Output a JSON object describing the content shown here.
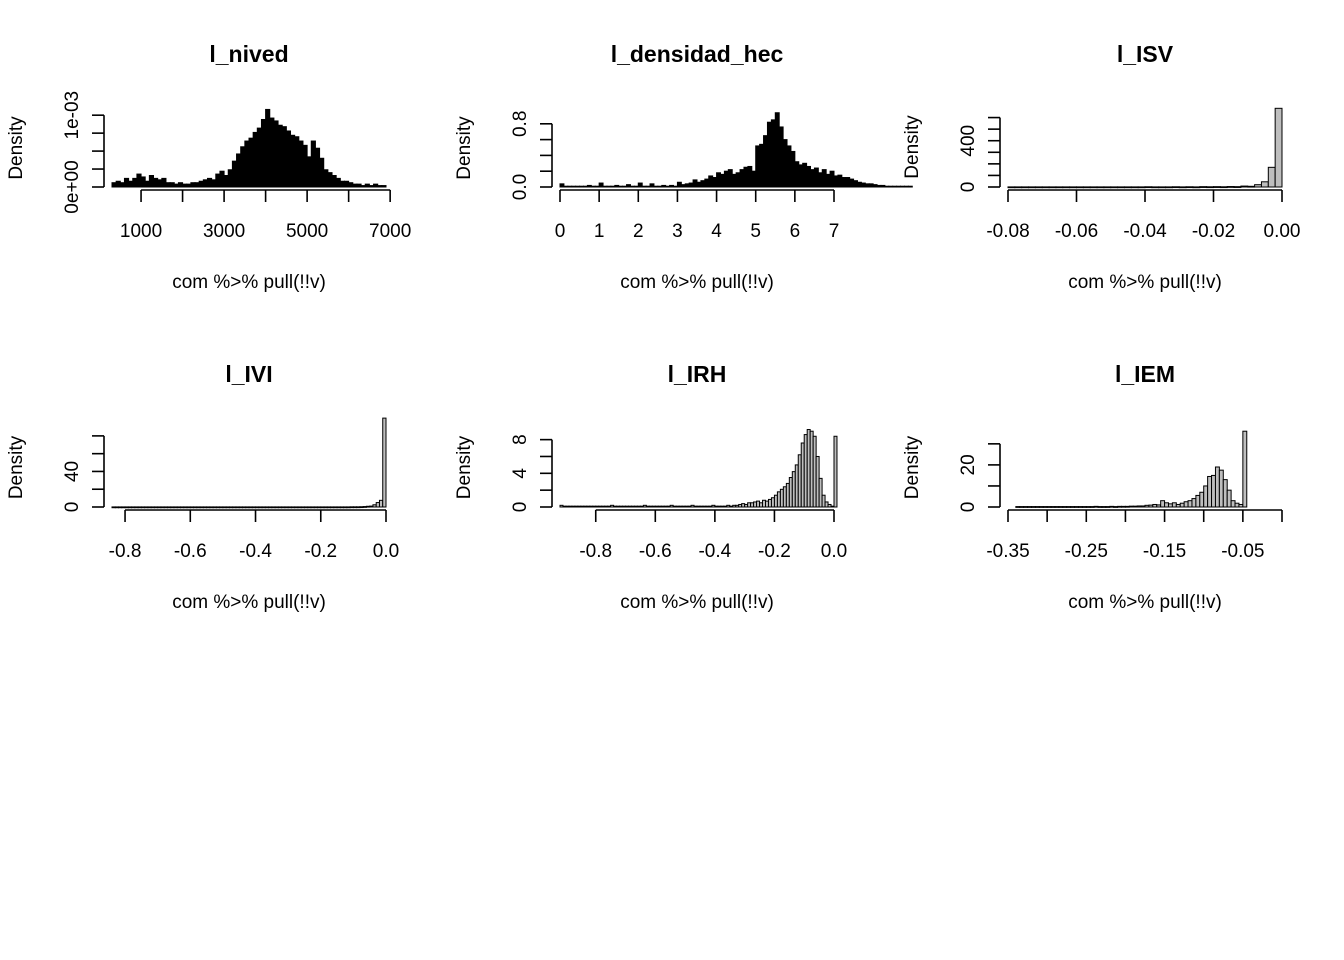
{
  "chart_data": [
    {
      "type": "bar",
      "title": "l_nived",
      "xlabel": "com %>% pull(!!v)",
      "ylabel": "Density",
      "xlim": [
        300,
        6900
      ],
      "ylim": [
        0,
        0.0011
      ],
      "x_ticks": [
        1000,
        2000,
        3000,
        4000,
        5000,
        6000,
        7000
      ],
      "x_tick_labels": [
        "1000",
        "",
        "3000",
        "",
        "5000",
        "",
        "7000"
      ],
      "y_ticks": [
        0,
        0.00025,
        0.0005,
        0.00075,
        0.001
      ],
      "y_tick_labels": [
        "0e+00",
        "",
        "",
        "",
        "1e-03"
      ],
      "bin_start": 300,
      "bin_width": 100,
      "bar_values": [
        6e-05,
        8e-05,
        6e-05,
        0.00012,
        8e-05,
        0.00012,
        0.00018,
        0.00014,
        8e-05,
        0.00016,
        0.00012,
        0.0001,
        0.00012,
        6e-05,
        6e-05,
        4e-05,
        6e-05,
        4e-05,
        4e-05,
        6e-05,
        6e-05,
        8e-05,
        0.0001,
        0.00012,
        0.0001,
        0.00018,
        0.00022,
        0.00016,
        0.00024,
        0.00036,
        0.00046,
        0.00056,
        0.00064,
        0.00068,
        0.00076,
        0.00082,
        0.00094,
        0.00108,
        0.00096,
        0.00092,
        0.00086,
        0.00084,
        0.00078,
        0.00072,
        0.0007,
        0.00064,
        0.00058,
        0.00042,
        0.00064,
        0.00054,
        0.0004,
        0.00024,
        0.0002,
        0.00016,
        0.00012,
        8e-05,
        8e-05,
        6e-05,
        4e-05,
        4e-05,
        2e-05,
        4e-05,
        2e-05,
        4e-05,
        2e-05,
        2e-05
      ],
      "bar_color": "#000000"
    },
    {
      "type": "bar",
      "title": "l_densidad_hec",
      "xlabel": "com %>% pull(!!v)",
      "ylabel": "Density",
      "xlim": [
        0,
        7
      ],
      "ylim": [
        0,
        1.0
      ],
      "x_ticks": [
        0,
        1,
        2,
        3,
        4,
        5,
        6,
        7
      ],
      "x_tick_labels": [
        "0",
        "1",
        "2",
        "3",
        "4",
        "5",
        "6",
        "7"
      ],
      "y_ticks": [
        0,
        0.2,
        0.4,
        0.6,
        0.8
      ],
      "y_tick_labels": [
        "0.0",
        "",
        "",
        "",
        "0.8"
      ],
      "bin_start": 0,
      "bin_width": 0.1,
      "bar_values": [
        0.04,
        0.01,
        0.01,
        0.01,
        0.01,
        0.01,
        0.01,
        0.02,
        0.01,
        0.01,
        0.05,
        0.01,
        0.01,
        0.01,
        0.02,
        0.01,
        0.01,
        0.03,
        0.01,
        0.01,
        0.05,
        0.01,
        0.01,
        0.04,
        0.01,
        0.01,
        0.02,
        0.01,
        0.02,
        0.01,
        0.06,
        0.03,
        0.04,
        0.05,
        0.09,
        0.06,
        0.08,
        0.1,
        0.14,
        0.12,
        0.18,
        0.16,
        0.2,
        0.22,
        0.16,
        0.18,
        0.22,
        0.25,
        0.26,
        0.2,
        0.52,
        0.54,
        0.65,
        0.82,
        0.85,
        0.94,
        0.76,
        0.6,
        0.52,
        0.45,
        0.32,
        0.28,
        0.3,
        0.26,
        0.22,
        0.24,
        0.18,
        0.22,
        0.16,
        0.2,
        0.14,
        0.15,
        0.12,
        0.12,
        0.1,
        0.08,
        0.06,
        0.05,
        0.04,
        0.04,
        0.03,
        0.02,
        0.02,
        0.01,
        0.01,
        0.01,
        0.01,
        0.01,
        0.01,
        0.01
      ],
      "bar_color": "#000000"
    },
    {
      "type": "bar",
      "title": "l_ISV",
      "xlabel": "com %>% pull(!!v)",
      "ylabel": "Density",
      "xlim": [
        -0.08,
        0
      ],
      "ylim": [
        0,
        700
      ],
      "x_ticks": [
        -0.08,
        -0.06,
        -0.04,
        -0.02,
        0
      ],
      "x_tick_labels": [
        "-0.08",
        "-0.06",
        "-0.04",
        "-0.02",
        "0.00"
      ],
      "y_ticks": [
        0,
        100,
        200,
        300,
        400,
        500,
        600
      ],
      "y_tick_labels": [
        "0",
        "",
        "",
        "",
        "400",
        "",
        ""
      ],
      "bin_start": -0.08,
      "bin_width": 0.002,
      "bar_values": [
        1,
        1,
        1,
        1,
        1,
        1,
        1,
        1,
        1,
        1,
        1,
        1,
        1,
        1,
        1,
        1,
        1,
        1,
        1,
        1,
        2,
        1,
        1,
        1,
        2,
        1,
        2,
        1,
        3,
        2,
        3,
        2,
        4,
        3,
        8,
        6,
        20,
        45,
        170,
        680
      ],
      "bar_color": "#bebebe"
    },
    {
      "type": "bar",
      "title": "l_IVI",
      "xlabel": "com %>% pull(!!v)",
      "ylabel": "Density",
      "xlim": [
        -0.84,
        0
      ],
      "ylim": [
        0,
        90
      ],
      "x_ticks": [
        -0.8,
        -0.6,
        -0.4,
        -0.2,
        0
      ],
      "x_tick_labels": [
        "-0.8",
        "-0.6",
        "-0.4",
        "-0.2",
        "0.0"
      ],
      "y_ticks": [
        0,
        20,
        40,
        60,
        80
      ],
      "y_tick_labels": [
        "0",
        "",
        "40",
        "",
        ""
      ],
      "bin_start": -0.84,
      "bin_width": 0.01,
      "bar_values": [
        0.1,
        0.1,
        0.1,
        0.1,
        0.1,
        0.1,
        0.1,
        0.1,
        0.1,
        0.1,
        0.1,
        0.1,
        0.1,
        0.1,
        0.1,
        0.1,
        0.1,
        0.1,
        0.1,
        0.1,
        0.1,
        0.1,
        0.1,
        0.1,
        0.1,
        0.1,
        0.1,
        0.1,
        0.1,
        0.1,
        0.1,
        0.1,
        0.1,
        0.1,
        0.1,
        0.1,
        0.1,
        0.1,
        0.1,
        0.1,
        0.1,
        0.1,
        0.1,
        0.1,
        0.1,
        0.1,
        0.1,
        0.1,
        0.1,
        0.1,
        0.1,
        0.1,
        0.1,
        0.1,
        0.1,
        0.1,
        0.1,
        0.1,
        0.1,
        0.1,
        0.1,
        0.1,
        0.1,
        0.1,
        0.1,
        0.1,
        0.1,
        0.1,
        0.1,
        0.1,
        0.1,
        0.1,
        0.1,
        0.2,
        0.2,
        0.2,
        0.3,
        0.5,
        0.8,
        1.0,
        2.5,
        5.0,
        7.5,
        100
      ],
      "bar_color": "#bebebe"
    },
    {
      "type": "bar",
      "title": "l_IRH",
      "xlabel": "com %>% pull(!!v)",
      "ylabel": "Density",
      "xlim": [
        -0.92,
        0
      ],
      "ylim": [
        0,
        9.5
      ],
      "x_ticks": [
        -0.8,
        -0.6,
        -0.4,
        -0.2,
        0
      ],
      "x_tick_labels": [
        "-0.8",
        "-0.6",
        "-0.4",
        "-0.2",
        "0.0"
      ],
      "y_ticks": [
        0,
        2,
        4,
        6,
        8
      ],
      "y_tick_labels": [
        "0",
        "",
        "4",
        "",
        "8"
      ],
      "bin_start": -0.92,
      "bin_width": 0.01,
      "bar_values": [
        0.2,
        0.1,
        0.1,
        0.1,
        0.1,
        0.1,
        0.1,
        0.1,
        0.1,
        0.1,
        0.1,
        0.1,
        0.1,
        0.1,
        0.1,
        0.1,
        0.1,
        0.2,
        0.1,
        0.1,
        0.1,
        0.1,
        0.1,
        0.1,
        0.1,
        0.1,
        0.1,
        0.1,
        0.2,
        0.1,
        0.1,
        0.1,
        0.1,
        0.1,
        0.1,
        0.1,
        0.1,
        0.2,
        0.1,
        0.1,
        0.1,
        0.1,
        0.1,
        0.1,
        0.2,
        0.1,
        0.1,
        0.1,
        0.1,
        0.1,
        0.1,
        0.2,
        0.1,
        0.1,
        0.1,
        0.1,
        0.2,
        0.1,
        0.2,
        0.2,
        0.3,
        0.4,
        0.3,
        0.5,
        0.5,
        0.6,
        0.7,
        0.5,
        0.8,
        0.7,
        0.9,
        1.1,
        1.4,
        1.8,
        2.1,
        2.4,
        2.8,
        3.5,
        4.2,
        5.0,
        6.2,
        7.6,
        8.6,
        9.2,
        9.0,
        8.4,
        6.0,
        3.4,
        1.4,
        0.6,
        0.3,
        0.1,
        8.4
      ],
      "bar_color": "#bebebe"
    },
    {
      "type": "bar",
      "title": "l_IEM",
      "xlabel": "com %>% pull(!!v)",
      "ylabel": "Density",
      "xlim": [
        -0.35,
        0
      ],
      "ylim": [
        0,
        38
      ],
      "x_ticks": [
        -0.35,
        -0.3,
        -0.25,
        -0.2,
        -0.15,
        -0.1,
        -0.05,
        0
      ],
      "x_tick_labels": [
        "-0.35",
        "",
        "-0.25",
        "",
        "-0.15",
        "",
        "-0.05",
        ""
      ],
      "y_ticks": [
        0,
        10,
        20,
        30
      ],
      "y_tick_labels": [
        "0",
        "",
        "20",
        ""
      ],
      "bin_start": -0.34,
      "bin_width": 0.005,
      "bar_values": [
        0.2,
        0.2,
        0.2,
        0.2,
        0.2,
        0.2,
        0.2,
        0.2,
        0.2,
        0.2,
        0.2,
        0.2,
        0.2,
        0.2,
        0.2,
        0.2,
        0.2,
        0.2,
        0.2,
        0.2,
        0.3,
        0.2,
        0.2,
        0.2,
        0.3,
        0.2,
        0.3,
        0.3,
        0.3,
        0.4,
        0.4,
        0.5,
        0.5,
        0.8,
        0.9,
        1.2,
        1.0,
        3.0,
        2.0,
        1.5,
        2.0,
        1.2,
        1.8,
        2.5,
        3.0,
        4.0,
        5.5,
        7.0,
        10.0,
        14.5,
        15.0,
        19.0,
        17.5,
        13.0,
        8.0,
        3.0,
        1.8,
        1.2,
        36.0
      ],
      "bar_color": "#bebebe"
    }
  ]
}
